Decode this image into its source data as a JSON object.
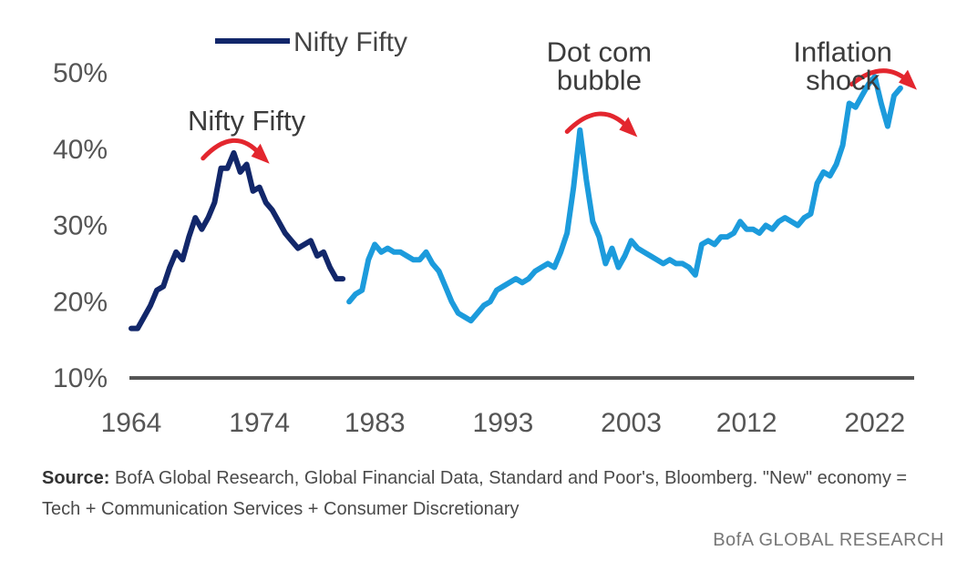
{
  "chart_data": {
    "type": "line",
    "xlim": [
      1964,
      2025
    ],
    "ylim": [
      10,
      50
    ],
    "x_ticks": [
      "1964",
      "1974",
      "1983",
      "1993",
      "2003",
      "2012",
      "2022"
    ],
    "y_ticks": [
      "10%",
      "20%",
      "30%",
      "40%",
      "50%"
    ],
    "legend": {
      "label": "Nifty Fifty",
      "placement": "top-left"
    },
    "colors": {
      "nifty_fifty": "#12276a",
      "new_economy": "#1c9bdc",
      "annotation_arrow": "#e3262e",
      "axis": "#555555"
    },
    "series": [
      {
        "name": "Nifty Fifty",
        "x": [
          1964.0,
          1964.5,
          1965.0,
          1965.5,
          1966.0,
          1966.5,
          1967.0,
          1967.5,
          1968.0,
          1968.5,
          1969.0,
          1969.5,
          1970.0,
          1970.5,
          1971.0,
          1971.5,
          1972.0,
          1972.5,
          1973.0,
          1973.5,
          1974.0,
          1974.5,
          1975.0,
          1975.5,
          1976.0,
          1976.5,
          1977.0,
          1977.5,
          1978.0,
          1978.5,
          1979.0,
          1979.5,
          1980.0,
          1980.5
        ],
        "y": [
          16.5,
          16.5,
          18.0,
          19.5,
          21.5,
          22.0,
          24.5,
          26.5,
          25.5,
          28.5,
          31.0,
          29.5,
          31.0,
          33.0,
          37.5,
          37.5,
          39.5,
          37.0,
          38.0,
          34.5,
          35.0,
          33.0,
          32.0,
          30.5,
          29.0,
          28.0,
          27.0,
          27.5,
          28.0,
          26.0,
          26.5,
          24.5,
          23.0,
          23.0
        ]
      },
      {
        "name": "",
        "x": [
          1981.0,
          1981.5,
          1982.0,
          1982.5,
          1983.0,
          1983.5,
          1984.0,
          1984.5,
          1985.0,
          1985.5,
          1986.0,
          1986.5,
          1987.0,
          1987.5,
          1988.0,
          1988.5,
          1989.0,
          1989.5,
          1990.0,
          1990.5,
          1991.0,
          1991.5,
          1992.0,
          1992.5,
          1993.0,
          1993.5,
          1994.0,
          1994.5,
          1995.0,
          1995.5,
          1996.0,
          1996.5,
          1997.0,
          1997.5,
          1998.0,
          1998.5,
          1999.0,
          1999.5,
          2000.0,
          2000.5,
          2001.0,
          2001.5,
          2002.0,
          2002.5,
          2003.0,
          2003.5,
          2004.0,
          2004.5,
          2005.0,
          2005.5,
          2006.0,
          2006.5,
          2007.0,
          2007.5,
          2008.0,
          2008.5,
          2009.0,
          2009.5,
          2010.0,
          2010.5,
          2011.0,
          2011.5,
          2012.0,
          2012.5,
          2013.0,
          2013.5,
          2014.0,
          2014.5,
          2015.0,
          2015.5,
          2016.0,
          2016.5,
          2017.0,
          2017.5,
          2018.0,
          2018.5,
          2019.0,
          2019.5,
          2020.0,
          2020.5,
          2021.0,
          2021.5,
          2022.0,
          2022.5,
          2023.0,
          2023.5,
          2024.0
        ],
        "y": [
          20.0,
          21.0,
          21.5,
          25.5,
          27.5,
          26.5,
          27.0,
          26.5,
          26.5,
          26.0,
          25.5,
          25.5,
          26.5,
          25.0,
          24.0,
          22.0,
          20.0,
          18.5,
          18.0,
          17.5,
          18.5,
          19.5,
          20.0,
          21.5,
          22.0,
          22.5,
          23.0,
          22.5,
          23.0,
          24.0,
          24.5,
          25.0,
          24.5,
          26.5,
          29.0,
          35.0,
          42.5,
          36.0,
          30.5,
          28.5,
          25.0,
          27.0,
          24.5,
          26.0,
          28.0,
          27.0,
          26.5,
          26.0,
          25.5,
          25.0,
          25.5,
          25.0,
          25.0,
          24.5,
          23.5,
          27.5,
          28.0,
          27.5,
          28.5,
          28.5,
          29.0,
          30.5,
          29.5,
          29.5,
          29.0,
          30.0,
          29.5,
          30.5,
          31.0,
          30.5,
          30.0,
          31.0,
          31.5,
          35.5,
          37.0,
          36.5,
          38.0,
          40.5,
          46.0,
          45.5,
          47.0,
          48.5,
          49.5,
          46.0,
          43.0,
          47.0,
          48.0
        ]
      }
    ],
    "annotations": [
      {
        "text": "Nifty Fifty",
        "x": 1973.0,
        "y": 42.5
      },
      {
        "text": "Dot com",
        "x": 2000.5,
        "y": 51.5
      },
      {
        "text": "bubble",
        "x": 2000.5,
        "y": 47.8
      },
      {
        "text": "Inflation",
        "x": 2019.5,
        "y": 51.5
      },
      {
        "text": "shock",
        "x": 2019.5,
        "y": 47.8
      }
    ],
    "arrows": [
      {
        "x1": 1969.6,
        "x2": 1974.5,
        "ytop": 40.8,
        "ybase": 38.8
      },
      {
        "x1": 1998.0,
        "x2": 2003.2,
        "ytop": 44.3,
        "ybase": 42.3
      },
      {
        "x1": 2020.2,
        "x2": 2025.0,
        "ytop": 50.0,
        "ybase": 48.5
      }
    ]
  },
  "footer": {
    "source_label": "Source:",
    "source_text": " BofA Global Research, Global Financial Data, Standard and Poor's, Bloomberg. \"New\" economy = Tech + Communication Services + Consumer Discretionary",
    "brand": "BofA GLOBAL RESEARCH"
  }
}
